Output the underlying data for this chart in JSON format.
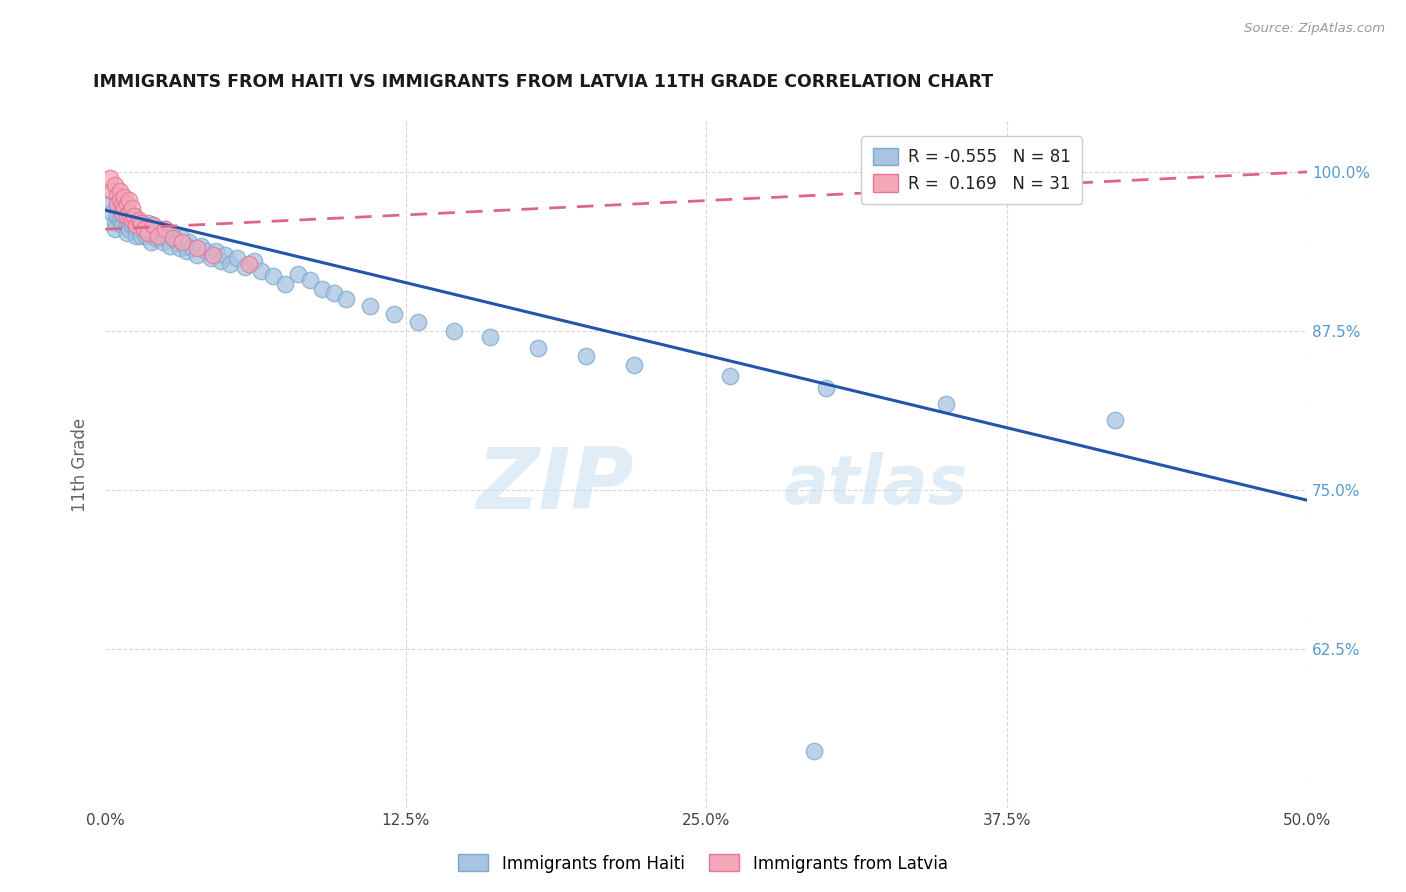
{
  "title": "IMMIGRANTS FROM HAITI VS IMMIGRANTS FROM LATVIA 11TH GRADE CORRELATION CHART",
  "source": "Source: ZipAtlas.com",
  "ylabel": "11th Grade",
  "xlim": [
    0.0,
    0.5
  ],
  "ylim": [
    0.5,
    1.04
  ],
  "ytick_labels": [
    "62.5%",
    "75.0%",
    "87.5%",
    "100.0%"
  ],
  "ytick_vals": [
    0.625,
    0.75,
    0.875,
    1.0
  ],
  "xtick_labels": [
    "0.0%",
    "12.5%",
    "25.0%",
    "37.5%",
    "50.0%"
  ],
  "xtick_vals": [
    0.0,
    0.125,
    0.25,
    0.375,
    0.5
  ],
  "haiti_color": "#a8c4e0",
  "haiti_edge_color": "#7aaacf",
  "latvia_color": "#f4a7b9",
  "latvia_edge_color": "#e07898",
  "haiti_R": -0.555,
  "haiti_N": 81,
  "latvia_R": 0.169,
  "latvia_N": 31,
  "watermark_zip": "ZIP",
  "watermark_atlas": "atlas",
  "legend_haiti": "Immigrants from Haiti",
  "legend_latvia": "Immigrants from Latvia",
  "haiti_scatter_x": [
    0.002,
    0.003,
    0.004,
    0.004,
    0.005,
    0.005,
    0.006,
    0.006,
    0.007,
    0.007,
    0.008,
    0.008,
    0.009,
    0.009,
    0.01,
    0.01,
    0.01,
    0.011,
    0.011,
    0.012,
    0.012,
    0.013,
    0.013,
    0.014,
    0.014,
    0.015,
    0.015,
    0.016,
    0.017,
    0.018,
    0.018,
    0.019,
    0.02,
    0.02,
    0.021,
    0.022,
    0.023,
    0.024,
    0.025,
    0.026,
    0.027,
    0.028,
    0.03,
    0.031,
    0.032,
    0.033,
    0.034,
    0.035,
    0.036,
    0.038,
    0.04,
    0.042,
    0.044,
    0.046,
    0.048,
    0.05,
    0.052,
    0.055,
    0.058,
    0.062,
    0.065,
    0.07,
    0.075,
    0.08,
    0.085,
    0.09,
    0.095,
    0.1,
    0.11,
    0.12,
    0.13,
    0.145,
    0.16,
    0.18,
    0.2,
    0.22,
    0.26,
    0.3,
    0.35,
    0.42,
    0.295
  ],
  "haiti_scatter_y": [
    0.975,
    0.968,
    0.96,
    0.955,
    0.975,
    0.965,
    0.97,
    0.962,
    0.96,
    0.958,
    0.972,
    0.965,
    0.958,
    0.952,
    0.968,
    0.96,
    0.955,
    0.963,
    0.958,
    0.965,
    0.96,
    0.955,
    0.95,
    0.96,
    0.955,
    0.95,
    0.96,
    0.955,
    0.95,
    0.96,
    0.952,
    0.945,
    0.958,
    0.952,
    0.948,
    0.955,
    0.95,
    0.945,
    0.955,
    0.948,
    0.942,
    0.95,
    0.945,
    0.94,
    0.948,
    0.942,
    0.938,
    0.945,
    0.94,
    0.935,
    0.942,
    0.938,
    0.932,
    0.938,
    0.93,
    0.935,
    0.928,
    0.932,
    0.925,
    0.93,
    0.922,
    0.918,
    0.912,
    0.92,
    0.915,
    0.908,
    0.905,
    0.9,
    0.895,
    0.888,
    0.882,
    0.875,
    0.87,
    0.862,
    0.855,
    0.848,
    0.84,
    0.83,
    0.818,
    0.805,
    0.545
  ],
  "latvia_scatter_x": [
    0.002,
    0.003,
    0.004,
    0.005,
    0.005,
    0.006,
    0.006,
    0.007,
    0.007,
    0.008,
    0.008,
    0.009,
    0.009,
    0.01,
    0.01,
    0.011,
    0.011,
    0.012,
    0.013,
    0.014,
    0.015,
    0.016,
    0.018,
    0.02,
    0.022,
    0.025,
    0.028,
    0.032,
    0.038,
    0.045,
    0.06
  ],
  "latvia_scatter_y": [
    0.995,
    0.985,
    0.99,
    0.982,
    0.975,
    0.985,
    0.978,
    0.975,
    0.968,
    0.98,
    0.972,
    0.975,
    0.965,
    0.978,
    0.968,
    0.972,
    0.962,
    0.965,
    0.958,
    0.962,
    0.96,
    0.955,
    0.952,
    0.958,
    0.95,
    0.955,
    0.948,
    0.945,
    0.94,
    0.935,
    0.928
  ],
  "haiti_trend_x": [
    0.0,
    0.5
  ],
  "haiti_trend_y": [
    0.97,
    0.742
  ],
  "latvia_trend_x": [
    0.0,
    0.5
  ],
  "latvia_trend_y": [
    0.955,
    1.0
  ],
  "background_color": "#ffffff",
  "grid_color": "#d8d8d8",
  "grid_linestyle": "--",
  "title_color": "#1a1a1a",
  "axis_label_color": "#666666",
  "right_tick_color": "#5599cc",
  "blue_line_color": "#2255aa",
  "pink_line_color": "#dd6688"
}
